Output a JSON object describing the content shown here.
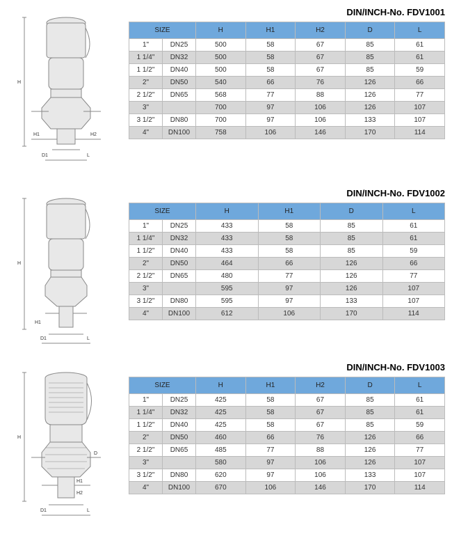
{
  "colors": {
    "header_bg": "#6fa8dc",
    "row_alt_bg": "#d7d7d7",
    "row_bg": "#ffffff",
    "border": "#bbbbbb",
    "text": "#333333",
    "diagram_stroke": "#888888",
    "diagram_fill": "#e8e8e8"
  },
  "sections": [
    {
      "title": "DIN/INCH-No. FDV1001",
      "columns": [
        "SIZE",
        "",
        "H",
        "H1",
        "H2",
        "D",
        "L"
      ],
      "size_colspan": 2,
      "rows": [
        [
          "1\"",
          "DN25",
          "500",
          "58",
          "67",
          "85",
          "61"
        ],
        [
          "1 1/4\"",
          "DN32",
          "500",
          "58",
          "67",
          "85",
          "61"
        ],
        [
          "1 1/2\"",
          "DN40",
          "500",
          "58",
          "67",
          "85",
          "59"
        ],
        [
          "2\"",
          "DN50",
          "540",
          "66",
          "76",
          "126",
          "66"
        ],
        [
          "2 1/2\"",
          "DN65",
          "568",
          "77",
          "88",
          "126",
          "77"
        ],
        [
          "3\"",
          "",
          "700",
          "97",
          "106",
          "126",
          "107"
        ],
        [
          "3 1/2\"",
          "DN80",
          "700",
          "97",
          "106",
          "133",
          "107"
        ],
        [
          "4\"",
          "DN100",
          "758",
          "106",
          "146",
          "170",
          "114"
        ]
      ],
      "diagram": "valve1"
    },
    {
      "title": "DIN/INCH-No. FDV1002",
      "columns": [
        "SIZE",
        "",
        "H",
        "H1",
        "D",
        "L"
      ],
      "size_colspan": 2,
      "rows": [
        [
          "1\"",
          "DN25",
          "433",
          "58",
          "85",
          "61"
        ],
        [
          "1 1/4\"",
          "DN32",
          "433",
          "58",
          "85",
          "61"
        ],
        [
          "1 1/2\"",
          "DN40",
          "433",
          "58",
          "85",
          "59"
        ],
        [
          "2\"",
          "DN50",
          "464",
          "66",
          "126",
          "66"
        ],
        [
          "2 1/2\"",
          "DN65",
          "480",
          "77",
          "126",
          "77"
        ],
        [
          "3\"",
          "",
          "595",
          "97",
          "126",
          "107"
        ],
        [
          "3 1/2\"",
          "DN80",
          "595",
          "97",
          "133",
          "107"
        ],
        [
          "4\"",
          "DN100",
          "612",
          "106",
          "170",
          "114"
        ]
      ],
      "diagram": "valve2"
    },
    {
      "title": "DIN/INCH-No. FDV1003",
      "columns": [
        "SIZE",
        "",
        "H",
        "H1",
        "H2",
        "D",
        "L"
      ],
      "size_colspan": 2,
      "rows": [
        [
          "1\"",
          "DN25",
          "425",
          "58",
          "67",
          "85",
          "61"
        ],
        [
          "1 1/4\"",
          "DN32",
          "425",
          "58",
          "67",
          "85",
          "61"
        ],
        [
          "1 1/2\"",
          "DN40",
          "425",
          "58",
          "67",
          "85",
          "59"
        ],
        [
          "2\"",
          "DN50",
          "460",
          "66",
          "76",
          "126",
          "66"
        ],
        [
          "2 1/2\"",
          "DN65",
          "485",
          "77",
          "88",
          "126",
          "77"
        ],
        [
          "3\"",
          "",
          "580",
          "97",
          "106",
          "126",
          "107"
        ],
        [
          "3 1/2\"",
          "DN80",
          "620",
          "97",
          "106",
          "133",
          "107"
        ],
        [
          "4\"",
          "DN100",
          "670",
          "106",
          "146",
          "170",
          "114"
        ]
      ],
      "diagram": "valve3"
    }
  ],
  "diagram_labels": {
    "H": "H",
    "H1": "H1",
    "H2": "H2",
    "D": "D",
    "D1": "D1",
    "L": "L"
  }
}
